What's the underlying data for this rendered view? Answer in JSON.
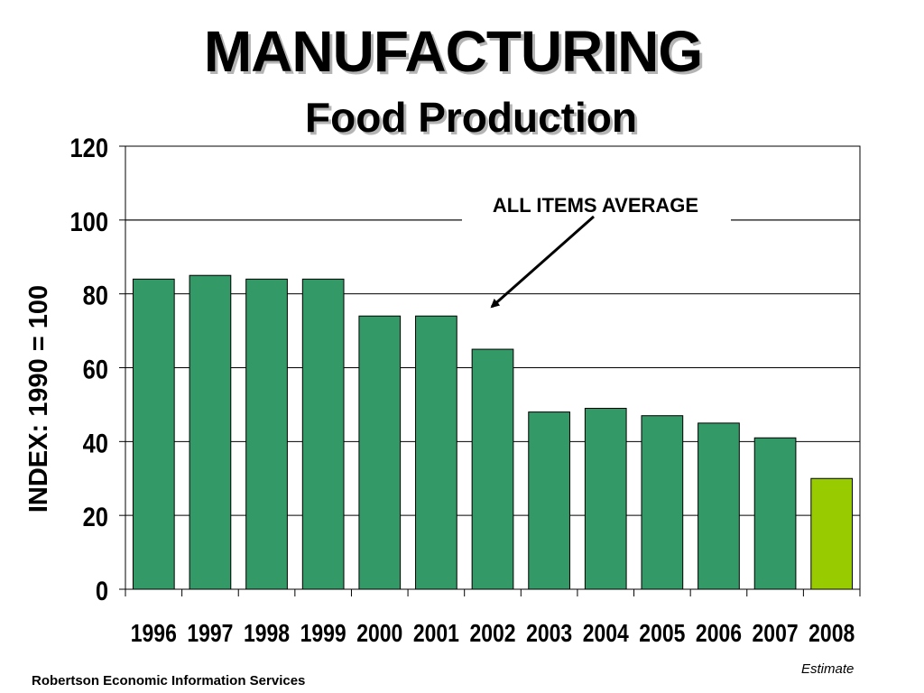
{
  "colors": {
    "bar": "#339966",
    "bar_highlight": "#99cc00",
    "grid": "#000000",
    "text": "#000000"
  },
  "chart_data": {
    "type": "bar",
    "title": "MANUFACTURING",
    "subtitle": "Food Production",
    "xlabel": "",
    "ylabel": "INDEX: 1990 = 100",
    "ylim": [
      0,
      120
    ],
    "yticks": [
      0,
      20,
      40,
      60,
      80,
      100,
      120
    ],
    "grid": true,
    "categories": [
      "1996",
      "1997",
      "1998",
      "1999",
      "2000",
      "2001",
      "2002",
      "2003",
      "2004",
      "2005",
      "2006",
      "2007",
      "2008"
    ],
    "values": [
      84,
      85,
      84,
      84,
      74,
      74,
      65,
      48,
      49,
      47,
      45,
      41,
      30
    ],
    "highlight_category": "2008",
    "reference_line": {
      "label": "ALL ITEMS AVERAGE",
      "value": 100
    }
  },
  "footer": {
    "source": "Robertson Economic Information Services",
    "note": "Estimate"
  }
}
